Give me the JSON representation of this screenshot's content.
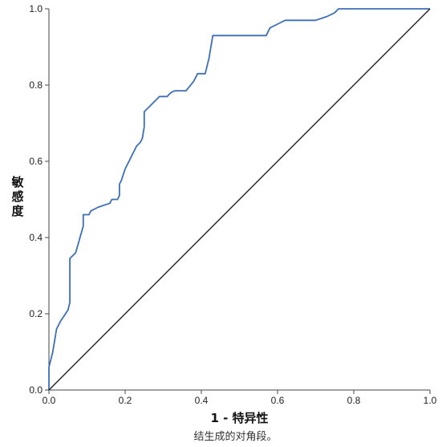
{
  "chart_data": {
    "type": "line",
    "xlabel": "1 - 特异性",
    "ylabel": "敏感度",
    "footnote": "结生成的对角段。",
    "xlim": [
      0,
      1
    ],
    "ylim": [
      0,
      1
    ],
    "x_ticks": [
      "0.0",
      "0.2",
      "0.4",
      "0.6",
      "0.8",
      "1.0"
    ],
    "y_ticks": [
      "0.0",
      "0.2",
      "0.4",
      "0.6",
      "0.8",
      "1.0"
    ],
    "grid": false,
    "series": [
      {
        "style": "roc-curve",
        "color": "#3b6fb6",
        "points": [
          [
            0.0,
            0.0
          ],
          [
            0.0,
            0.06
          ],
          [
            0.01,
            0.1
          ],
          [
            0.02,
            0.16
          ],
          [
            0.03,
            0.18
          ],
          [
            0.05,
            0.21
          ],
          [
            0.055,
            0.23
          ],
          [
            0.055,
            0.345
          ],
          [
            0.07,
            0.36
          ],
          [
            0.09,
            0.43
          ],
          [
            0.09,
            0.46
          ],
          [
            0.105,
            0.46
          ],
          [
            0.11,
            0.47
          ],
          [
            0.13,
            0.48
          ],
          [
            0.16,
            0.49
          ],
          [
            0.165,
            0.5
          ],
          [
            0.18,
            0.5
          ],
          [
            0.185,
            0.51
          ],
          [
            0.185,
            0.54
          ],
          [
            0.19,
            0.55
          ],
          [
            0.2,
            0.58
          ],
          [
            0.21,
            0.6
          ],
          [
            0.22,
            0.62
          ],
          [
            0.23,
            0.64
          ],
          [
            0.24,
            0.65
          ],
          [
            0.245,
            0.66
          ],
          [
            0.25,
            0.69
          ],
          [
            0.25,
            0.73
          ],
          [
            0.27,
            0.75
          ],
          [
            0.29,
            0.77
          ],
          [
            0.31,
            0.77
          ],
          [
            0.32,
            0.78
          ],
          [
            0.33,
            0.785
          ],
          [
            0.36,
            0.785
          ],
          [
            0.38,
            0.81
          ],
          [
            0.39,
            0.83
          ],
          [
            0.41,
            0.83
          ],
          [
            0.42,
            0.87
          ],
          [
            0.43,
            0.93
          ],
          [
            0.57,
            0.93
          ],
          [
            0.58,
            0.95
          ],
          [
            0.6,
            0.96
          ],
          [
            0.62,
            0.97
          ],
          [
            0.7,
            0.97
          ],
          [
            0.73,
            0.98
          ],
          [
            0.75,
            0.99
          ],
          [
            0.76,
            1.0
          ],
          [
            1.0,
            1.0
          ]
        ]
      },
      {
        "style": "reference-diagonal",
        "color": "#222222",
        "points": [
          [
            0,
            0
          ],
          [
            1,
            1
          ]
        ]
      }
    ]
  }
}
